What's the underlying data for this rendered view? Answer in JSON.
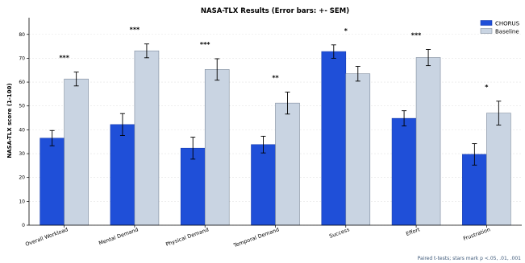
{
  "chart_data": {
    "type": "bar",
    "title": "NASA-TLX Results (Error bars: +- SEM)",
    "xlabel": "",
    "ylabel": "NASA-TLX score (1-100)",
    "ylim": [
      0,
      87
    ],
    "yticks": [
      0,
      10,
      20,
      30,
      40,
      50,
      60,
      70,
      80
    ],
    "grid": "horizontal dashed",
    "legend_position": "top-right",
    "categories": [
      "Overall Workload",
      "Mental Demand",
      "Physical Demand",
      "Temporal Demand",
      "Success",
      "Effort",
      "Frustration"
    ],
    "series": [
      {
        "name": "CHORUS",
        "color": "#1f4fd8",
        "values": [
          36.5,
          42.2,
          32.3,
          33.8,
          72.8,
          44.8,
          29.7
        ],
        "sem": [
          3.2,
          4.6,
          4.6,
          3.5,
          2.8,
          3.2,
          4.5
        ]
      },
      {
        "name": "Baseline",
        "color": "#c9d4e2",
        "values": [
          61.3,
          73.1,
          65.3,
          51.2,
          63.5,
          70.3,
          47.0
        ],
        "sem": [
          2.9,
          2.9,
          4.5,
          4.6,
          3.1,
          3.4,
          5.0
        ]
      }
    ],
    "significance": [
      "***",
      "***",
      "***",
      "**",
      "*",
      "***",
      "*"
    ],
    "footnote": "Paired t-tests; stars mark p <.05, .01, .001"
  }
}
